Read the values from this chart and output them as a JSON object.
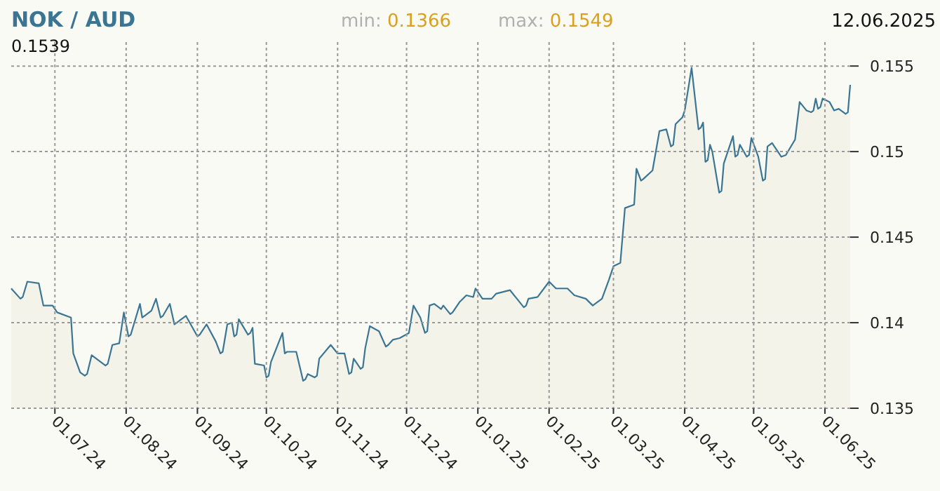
{
  "chart_data": {
    "type": "area",
    "title": "NOK / AUD",
    "annotations": [
      "min: 0.1366",
      "max: 0.1549",
      "12.06.2025",
      "0.1539"
    ],
    "xlim": [
      "2024-06-12",
      "2025-06-12"
    ],
    "xticks": [
      {
        "value": "2024-07-01",
        "label": "01.07.24"
      },
      {
        "value": "2024-08-01",
        "label": "01.08.24"
      },
      {
        "value": "2024-09-01",
        "label": "01.09.24"
      },
      {
        "value": "2024-10-01",
        "label": "01.10.24"
      },
      {
        "value": "2024-11-01",
        "label": "01.11.24"
      },
      {
        "value": "2024-12-01",
        "label": "01.12.24"
      },
      {
        "value": "2025-01-01",
        "label": "01.01.25"
      },
      {
        "value": "2025-02-01",
        "label": "01.02.25"
      },
      {
        "value": "2025-03-01",
        "label": "01.03.25"
      },
      {
        "value": "2025-04-01",
        "label": "01.04.25"
      },
      {
        "value": "2025-05-01",
        "label": "01.05.25"
      },
      {
        "value": "2025-06-01",
        "label": "01.06.25"
      }
    ],
    "ylim": [
      0.135,
      0.1564
    ],
    "yticks": [
      0.135,
      0.14,
      0.145,
      0.15,
      0.155
    ],
    "grid": true,
    "series": [
      {
        "color": "#3a7694",
        "x": [
          "2024-06-12",
          "2024-06-16",
          "2024-06-17",
          "2024-06-19",
          "2024-06-24",
          "2024-06-26",
          "2024-06-30",
          "2024-07-02",
          "2024-07-08",
          "2024-07-09",
          "2024-07-12",
          "2024-07-14",
          "2024-07-15",
          "2024-07-17",
          "2024-07-23",
          "2024-07-24",
          "2024-07-26",
          "2024-07-29",
          "2024-07-31",
          "2024-08-02",
          "2024-08-03",
          "2024-08-07",
          "2024-08-08",
          "2024-08-09",
          "2024-08-12",
          "2024-08-14",
          "2024-08-16",
          "2024-08-17",
          "2024-08-20",
          "2024-08-22",
          "2024-08-23",
          "2024-08-27",
          "2024-09-01",
          "2024-09-02",
          "2024-09-05",
          "2024-09-09",
          "2024-09-11",
          "2024-09-12",
          "2024-09-14",
          "2024-09-16",
          "2024-09-17",
          "2024-09-18",
          "2024-09-19",
          "2024-09-23",
          "2024-09-24",
          "2024-09-25",
          "2024-09-26",
          "2024-09-30",
          "2024-10-01",
          "2024-10-02",
          "2024-10-03",
          "2024-10-08",
          "2024-10-09",
          "2024-10-10",
          "2024-10-14",
          "2024-10-17",
          "2024-10-18",
          "2024-10-19",
          "2024-10-22",
          "2024-10-23",
          "2024-10-24",
          "2024-10-29",
          "2024-11-01",
          "2024-11-04",
          "2024-11-06",
          "2024-11-07",
          "2024-11-08",
          "2024-11-11",
          "2024-11-12",
          "2024-11-13",
          "2024-11-15",
          "2024-11-19",
          "2024-11-22",
          "2024-11-23",
          "2024-11-25",
          "2024-11-28",
          "2024-12-02",
          "2024-12-04",
          "2024-12-07",
          "2024-12-09",
          "2024-12-10",
          "2024-12-11",
          "2024-12-13",
          "2024-12-16",
          "2024-12-17",
          "2024-12-20",
          "2024-12-21",
          "2024-12-24",
          "2024-12-27",
          "2024-12-30",
          "2024-12-31",
          "2025-01-03",
          "2025-01-07",
          "2025-01-09",
          "2025-01-15",
          "2025-01-18",
          "2025-01-21",
          "2025-01-22",
          "2025-01-23",
          "2025-01-27",
          "2025-02-01",
          "2025-02-04",
          "2025-02-09",
          "2025-02-12",
          "2025-02-17",
          "2025-02-20",
          "2025-02-21",
          "2025-02-24",
          "2025-02-27",
          "2025-03-01",
          "2025-03-04",
          "2025-03-06",
          "2025-03-10",
          "2025-03-11",
          "2025-03-13",
          "2025-03-14",
          "2025-03-18",
          "2025-03-21",
          "2025-03-24",
          "2025-03-26",
          "2025-03-27",
          "2025-03-28",
          "2025-03-31",
          "2025-04-01",
          "2025-04-04",
          "2025-04-07",
          "2025-04-08",
          "2025-04-09",
          "2025-04-10",
          "2025-04-11",
          "2025-04-12",
          "2025-04-13",
          "2025-04-16",
          "2025-04-17",
          "2025-04-18",
          "2025-04-22",
          "2025-04-23",
          "2025-04-24",
          "2025-04-25",
          "2025-04-28",
          "2025-04-29",
          "2025-04-30",
          "2025-05-03",
          "2025-05-05",
          "2025-05-06",
          "2025-05-07",
          "2025-05-09",
          "2025-05-13",
          "2025-05-15",
          "2025-05-19",
          "2025-05-21",
          "2025-05-24",
          "2025-05-26",
          "2025-05-27",
          "2025-05-28",
          "2025-05-29",
          "2025-05-30",
          "2025-05-31",
          "2025-06-03",
          "2025-06-05",
          "2025-06-07",
          "2025-06-10",
          "2025-06-11",
          "2025-06-12"
        ],
        "values": [
          0.142,
          0.1414,
          0.1415,
          0.1424,
          0.1423,
          0.141,
          0.141,
          0.1406,
          0.1403,
          0.1382,
          0.1371,
          0.1369,
          0.137,
          0.1381,
          0.1375,
          0.1376,
          0.1387,
          0.1388,
          0.1406,
          0.1392,
          0.1393,
          0.1411,
          0.1403,
          0.1404,
          0.1407,
          0.1414,
          0.1403,
          0.1404,
          0.1411,
          0.1399,
          0.14,
          0.1404,
          0.1392,
          0.1393,
          0.1399,
          0.1389,
          0.1382,
          0.1383,
          0.1399,
          0.14,
          0.1392,
          0.1393,
          0.1402,
          0.1393,
          0.1394,
          0.1397,
          0.1376,
          0.1375,
          0.1368,
          0.1369,
          0.1377,
          0.1394,
          0.1382,
          0.1383,
          0.1383,
          0.1366,
          0.1367,
          0.137,
          0.1368,
          0.1369,
          0.1379,
          0.1387,
          0.1382,
          0.1382,
          0.137,
          0.1371,
          0.1379,
          0.1373,
          0.1374,
          0.1385,
          0.1398,
          0.1395,
          0.1386,
          0.1387,
          0.139,
          0.1391,
          0.1394,
          0.141,
          0.1403,
          0.1394,
          0.1395,
          0.141,
          0.1411,
          0.1408,
          0.141,
          0.1405,
          0.1406,
          0.1412,
          0.1416,
          0.1415,
          0.142,
          0.1414,
          0.1414,
          0.1417,
          0.1419,
          0.1414,
          0.1409,
          0.141,
          0.1414,
          0.1415,
          0.1424,
          0.142,
          0.142,
          0.1416,
          0.1414,
          0.141,
          0.1411,
          0.1414,
          0.1425,
          0.1433,
          0.1435,
          0.1467,
          0.1469,
          0.149,
          0.1483,
          0.1484,
          0.1489,
          0.1512,
          0.1513,
          0.1503,
          0.1504,
          0.1516,
          0.152,
          0.1524,
          0.1549,
          0.1513,
          0.1514,
          0.1517,
          0.1494,
          0.1495,
          0.1504,
          0.15,
          0.1476,
          0.1477,
          0.1493,
          0.1509,
          0.1497,
          0.1498,
          0.1504,
          0.1497,
          0.1498,
          0.1508,
          0.1497,
          0.1483,
          0.1484,
          0.1503,
          0.1505,
          0.1497,
          0.1498,
          0.1507,
          0.1529,
          0.1524,
          0.1523,
          0.1524,
          0.1531,
          0.1525,
          0.1526,
          0.1531,
          0.1529,
          0.1524,
          0.1525,
          0.1522,
          0.1523,
          0.1539
        ]
      }
    ]
  }
}
